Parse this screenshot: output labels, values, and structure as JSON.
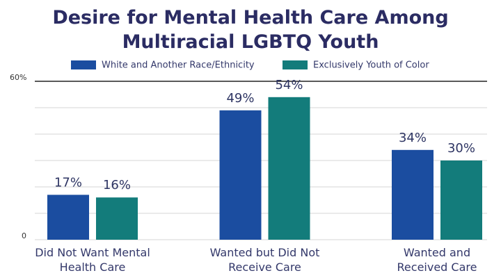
{
  "chart_data": {
    "type": "bar",
    "title": "Desire for Mental Health Care Among Multiracial LGBTQ Youth",
    "categories": [
      "Did Not Want Mental Health Care",
      "Wanted but Did Not Receive Care",
      "Wanted and Received Care"
    ],
    "series": [
      {
        "name": "White and Another Race/Ethnicity",
        "color": "#1b4da0",
        "values": [
          17,
          49,
          34
        ],
        "value_labels": [
          "17%",
          "49%",
          "34%"
        ]
      },
      {
        "name": "Exclusively Youth of Color",
        "color": "#137c7b",
        "values": [
          16,
          54,
          30
        ],
        "value_labels": [
          "16%",
          "54%",
          "30%"
        ]
      }
    ],
    "ylim": [
      0,
      60
    ],
    "yticks": [
      0,
      {
        "value": 60,
        "label": "60%"
      }
    ],
    "grid_lines": [
      10,
      20,
      30,
      40,
      50
    ],
    "grid": true
  }
}
